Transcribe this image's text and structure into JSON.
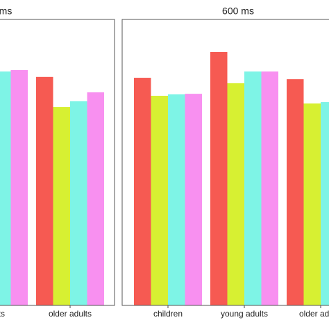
{
  "chart_data": [
    {
      "type": "bar",
      "title": "ms",
      "categories": [
        "adults",
        "older adults"
      ],
      "series": [
        {
          "color": "#f65a52",
          "values": [
            null,
            79.9
          ]
        },
        {
          "color": "#d7f032",
          "values": [
            null,
            69.4
          ]
        },
        {
          "color": "#7ef4e6",
          "values": [
            81.8,
            71.4
          ]
        },
        {
          "color": "#f890f0",
          "values": [
            82.3,
            74.5
          ]
        }
      ],
      "ylim": [
        0,
        100
      ]
    },
    {
      "type": "bar",
      "title": "600 ms",
      "categories": [
        "children",
        "young adults",
        "older adults"
      ],
      "series": [
        {
          "color": "#f65a52",
          "values": [
            79.6,
            88.6,
            79.1
          ]
        },
        {
          "color": "#d7f032",
          "values": [
            73.3,
            77.7,
            70.6
          ]
        },
        {
          "color": "#7ef4e6",
          "values": [
            73.8,
            81.8,
            71.1
          ]
        },
        {
          "color": "#f890f0",
          "values": [
            74.0,
            81.8,
            null
          ]
        }
      ],
      "ylim": [
        0,
        100
      ]
    }
  ]
}
